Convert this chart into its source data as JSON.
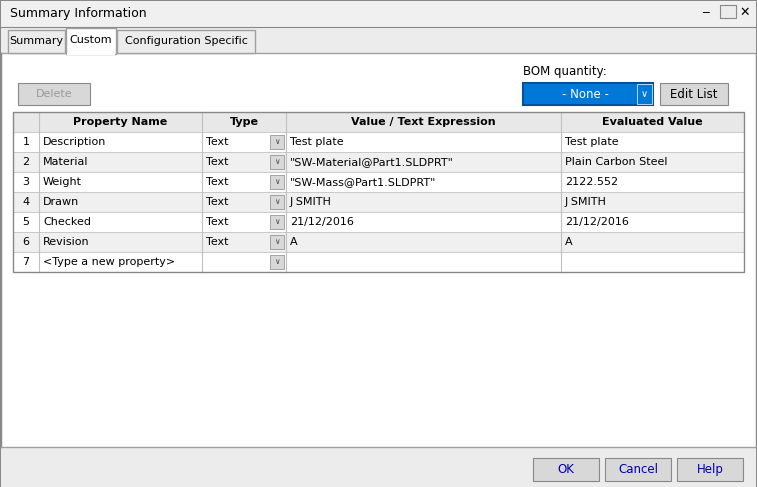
{
  "title": "Summary Information",
  "tabs": [
    "Summary",
    "Custom",
    "Configuration Specific"
  ],
  "active_tab_idx": 1,
  "bom_label": "BOM quantity:",
  "bom_value": "- None -",
  "delete_btn": "Delete",
  "edit_list_btn": "Edit List",
  "col_headers": [
    "Property Name",
    "Type",
    "Value / Text Expression",
    "Evaluated Value"
  ],
  "rows": [
    [
      "1",
      "Description",
      "Text",
      "Test plate",
      "Test plate"
    ],
    [
      "2",
      "Material",
      "Text",
      "\"SW-Material@Part1.SLDPRT\"",
      "Plain Carbon Steel"
    ],
    [
      "3",
      "Weight",
      "Text",
      "\"SW-Mass@Part1.SLDPRT\"",
      "2122.552"
    ],
    [
      "4",
      "Drawn",
      "Text",
      "J SMITH",
      "J SMITH"
    ],
    [
      "5",
      "Checked",
      "Text",
      "21/12/2016",
      "21/12/2016"
    ],
    [
      "6",
      "Revision",
      "Text",
      "A",
      "A"
    ],
    [
      "7",
      "<Type a new property>",
      "",
      "",
      ""
    ]
  ],
  "bottom_btns": [
    "OK",
    "Cancel",
    "Help"
  ],
  "bg_color": "#ececec",
  "white": "#ffffff",
  "border_dark": "#888888",
  "border_light": "#c8c8c8",
  "header_bg": "#e8e8e8",
  "blue_bg": "#0078d7",
  "blue_text": "#ffffff",
  "blue_border": "#0050a0",
  "light_gray": "#d8d8d8",
  "text_color": "#000000",
  "gray_text": "#999999",
  "grid_color": "#c0c0c0",
  "title_bar_color": "#f0f0f0",
  "tab_line_color": "#a0a0a0",
  "btn_text_color": "#0000aa"
}
